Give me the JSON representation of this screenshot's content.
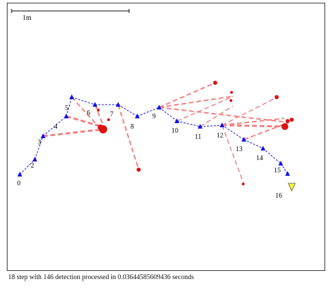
{
  "scale_label": "1m",
  "status_text": "18 step with 146 detection processed in 0.03644585609436 seconds",
  "colors": {
    "trajectory": "#1010ee",
    "detection_line": "#f08080",
    "detection_point": "#dd1111",
    "goal_marker": "#ffff33",
    "border": "#333333"
  },
  "icons": {
    "pose": "blue-triangle-icon",
    "detection": "red-dot-icon",
    "goal": "yellow-triangle-icon"
  },
  "nodes": [
    {
      "label": "0"
    },
    {
      "label": "2"
    },
    {
      "label": "3"
    },
    {
      "label": "4"
    },
    {
      "label": "5"
    },
    {
      "label": "6"
    },
    {
      "label": "7"
    },
    {
      "label": "8"
    },
    {
      "label": "9"
    },
    {
      "label": "10"
    },
    {
      "label": "11"
    },
    {
      "label": "12"
    },
    {
      "label": "13"
    },
    {
      "label": "14"
    },
    {
      "label": "15"
    },
    {
      "label": "16"
    }
  ]
}
